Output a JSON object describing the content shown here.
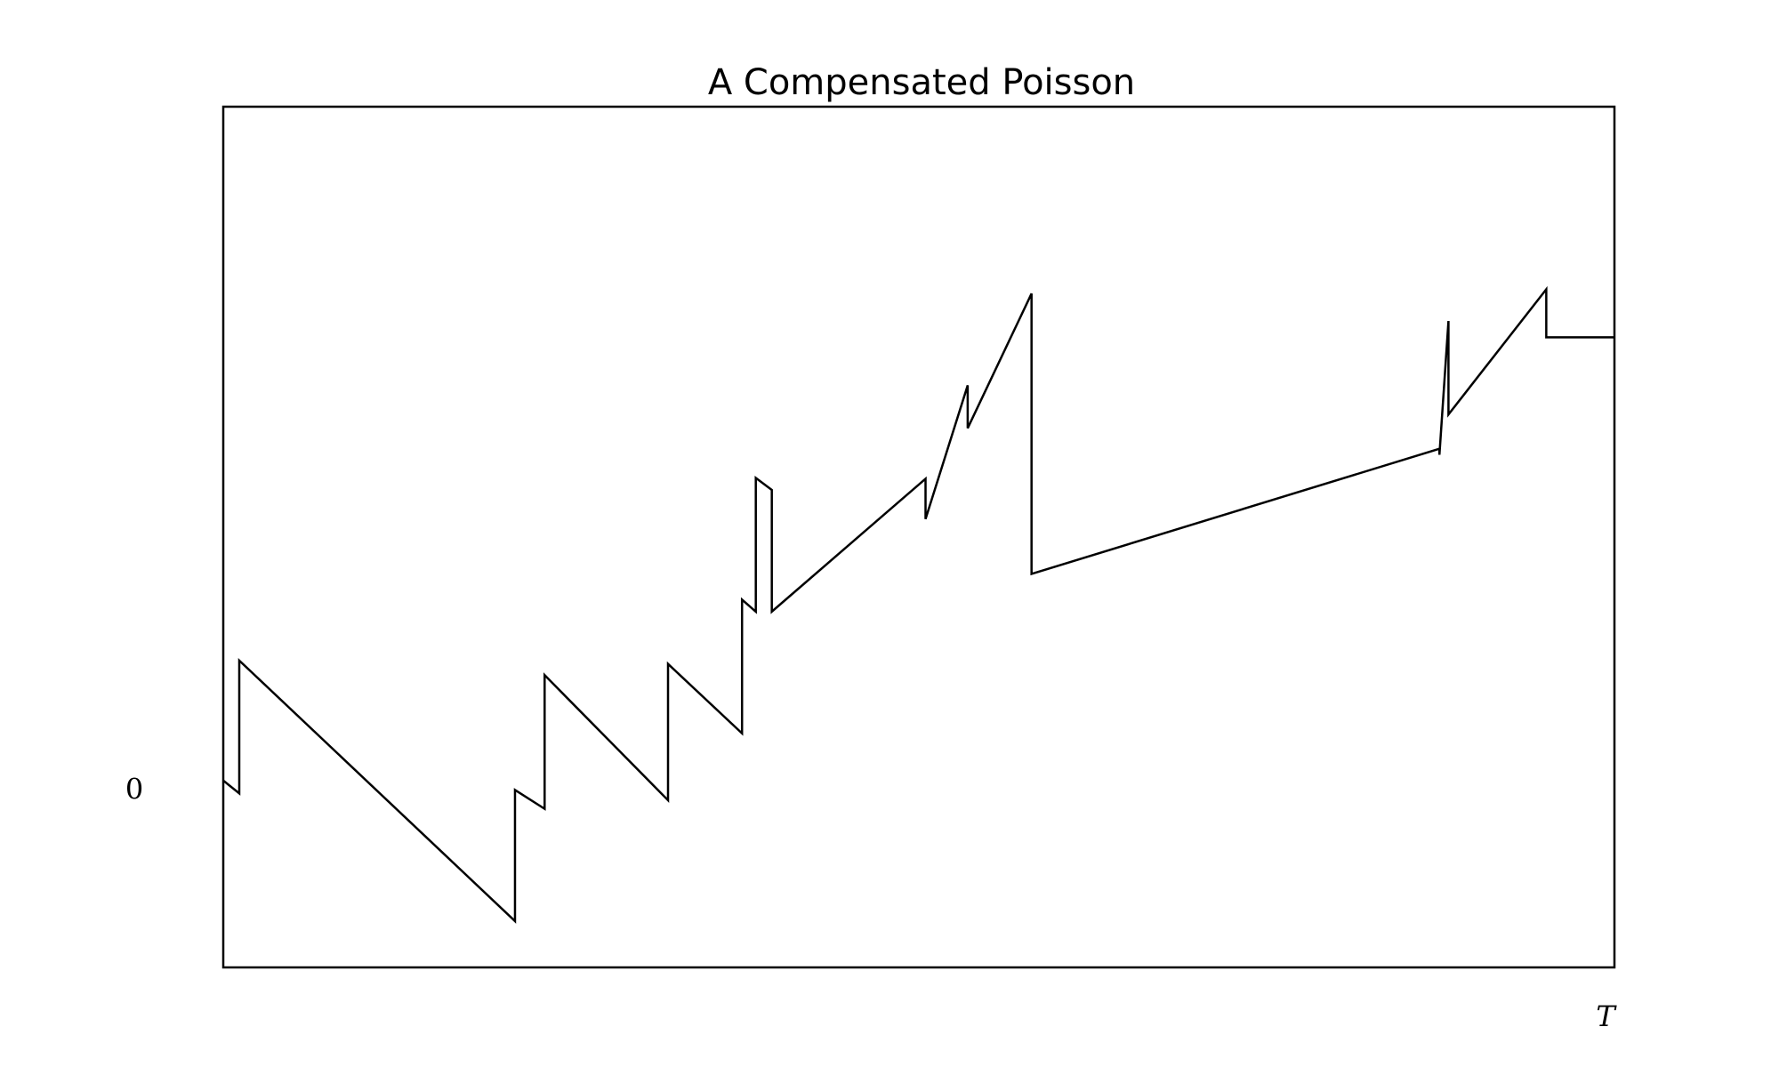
{
  "chart_data": {
    "type": "line",
    "title": "A Compensated Poisson",
    "xlabel": "",
    "ylabel": "",
    "xlim": [
      0,
      1
    ],
    "ylim": [
      -2.08,
      7.96
    ],
    "x_tick_labels": [
      {
        "value": 1,
        "label": "T"
      }
    ],
    "y_tick_labels": [
      {
        "value": 0,
        "label": "0"
      }
    ],
    "grid": false,
    "legend": "none",
    "line_color": "#000000",
    "series": [
      {
        "x": [
          0,
          0.0115,
          0.0115,
          0.2097,
          0.2097,
          0.231,
          0.231,
          0.3197,
          0.3197,
          0.3729,
          0.3729,
          0.3828,
          0.3828,
          0.3943,
          0.3943,
          0.5048,
          0.5048,
          0.5351,
          0.5351,
          0.581,
          0.581,
          0.8742,
          0.8742,
          0.8807,
          0.8807,
          0.951,
          0.951,
          1.0
        ],
        "y": [
          0.1,
          -0.05,
          1.5,
          -1.54,
          -0.01,
          -0.23,
          1.33,
          -0.13,
          1.46,
          0.65,
          2.21,
          2.07,
          3.63,
          3.49,
          2.07,
          3.62,
          3.15,
          4.71,
          4.21,
          5.78,
          2.51,
          3.97,
          3.9,
          5.46,
          4.37,
          5.83,
          5.27,
          5.27
        ]
      }
    ]
  }
}
